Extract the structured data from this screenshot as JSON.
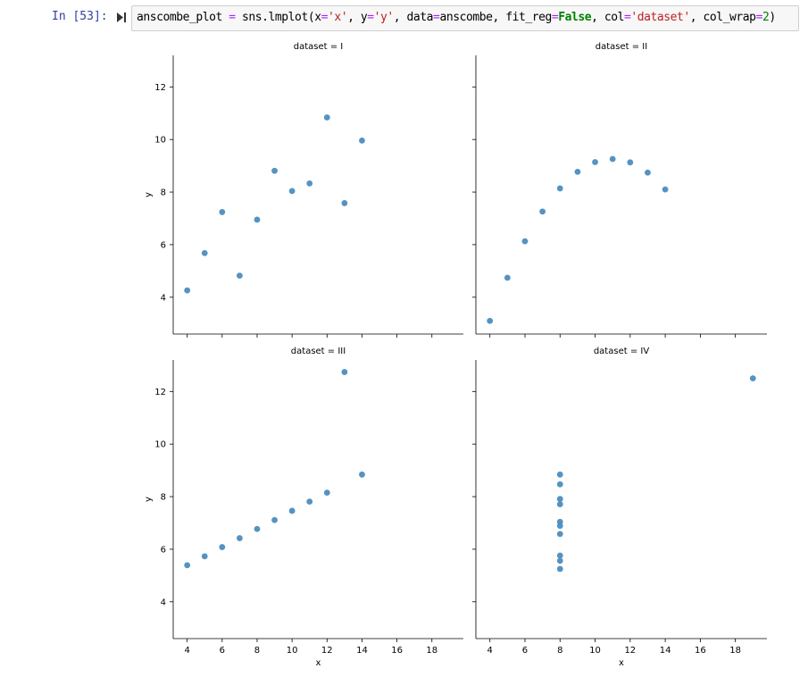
{
  "cell": {
    "prompt": "In [53]:",
    "code_tokens": [
      {
        "t": "anscombe_plot ",
        "c": ""
      },
      {
        "t": "=",
        "c": "op"
      },
      {
        "t": " sns.lmplot(x",
        "c": ""
      },
      {
        "t": "=",
        "c": "op"
      },
      {
        "t": "'x'",
        "c": "str"
      },
      {
        "t": ", y",
        "c": ""
      },
      {
        "t": "=",
        "c": "op"
      },
      {
        "t": "'y'",
        "c": "str"
      },
      {
        "t": ", data",
        "c": ""
      },
      {
        "t": "=",
        "c": "op"
      },
      {
        "t": "anscombe, fit_reg",
        "c": ""
      },
      {
        "t": "=",
        "c": "op"
      },
      {
        "t": "False",
        "c": "kw"
      },
      {
        "t": ", col",
        "c": ""
      },
      {
        "t": "=",
        "c": "op"
      },
      {
        "t": "'dataset'",
        "c": "str"
      },
      {
        "t": ", col_wrap",
        "c": ""
      },
      {
        "t": "=",
        "c": "op"
      },
      {
        "t": "2",
        "c": "num"
      },
      {
        "t": ")",
        "c": ""
      }
    ]
  },
  "chart_data": [
    {
      "type": "scatter",
      "title": "dataset = I",
      "xlabel": "",
      "ylabel": "y",
      "xlim": [
        3.2,
        19.8
      ],
      "ylim": [
        2.6,
        13.2
      ],
      "xticks": [
        4,
        6,
        8,
        10,
        12,
        14,
        16,
        18
      ],
      "yticks": [
        4,
        6,
        8,
        10,
        12
      ],
      "show_xticklabels": false,
      "show_yticklabels": true,
      "color": "#4c8dbe",
      "points": [
        [
          10,
          8.04
        ],
        [
          8,
          6.95
        ],
        [
          13,
          7.58
        ],
        [
          9,
          8.81
        ],
        [
          11,
          8.33
        ],
        [
          14,
          9.96
        ],
        [
          6,
          7.24
        ],
        [
          4,
          4.26
        ],
        [
          12,
          10.84
        ],
        [
          7,
          4.82
        ],
        [
          5,
          5.68
        ]
      ]
    },
    {
      "type": "scatter",
      "title": "dataset = II",
      "xlabel": "",
      "ylabel": "",
      "xlim": [
        3.2,
        19.8
      ],
      "ylim": [
        2.6,
        13.2
      ],
      "xticks": [
        4,
        6,
        8,
        10,
        12,
        14,
        16,
        18
      ],
      "yticks": [
        4,
        6,
        8,
        10,
        12
      ],
      "show_xticklabels": false,
      "show_yticklabels": false,
      "color": "#4c8dbe",
      "points": [
        [
          10,
          9.14
        ],
        [
          8,
          8.14
        ],
        [
          13,
          8.74
        ],
        [
          9,
          8.77
        ],
        [
          11,
          9.26
        ],
        [
          14,
          8.1
        ],
        [
          6,
          6.13
        ],
        [
          4,
          3.1
        ],
        [
          12,
          9.13
        ],
        [
          7,
          7.26
        ],
        [
          5,
          4.74
        ]
      ]
    },
    {
      "type": "scatter",
      "title": "dataset = III",
      "xlabel": "x",
      "ylabel": "y",
      "xlim": [
        3.2,
        19.8
      ],
      "ylim": [
        2.6,
        13.2
      ],
      "xticks": [
        4,
        6,
        8,
        10,
        12,
        14,
        16,
        18
      ],
      "yticks": [
        4,
        6,
        8,
        10,
        12
      ],
      "show_xticklabels": true,
      "show_yticklabels": true,
      "color": "#4c8dbe",
      "points": [
        [
          10,
          7.46
        ],
        [
          8,
          6.77
        ],
        [
          13,
          12.74
        ],
        [
          9,
          7.11
        ],
        [
          11,
          7.81
        ],
        [
          14,
          8.84
        ],
        [
          6,
          6.08
        ],
        [
          4,
          5.39
        ],
        [
          12,
          8.15
        ],
        [
          7,
          6.42
        ],
        [
          5,
          5.73
        ]
      ]
    },
    {
      "type": "scatter",
      "title": "dataset = IV",
      "xlabel": "x",
      "ylabel": "",
      "xlim": [
        3.2,
        19.8
      ],
      "ylim": [
        2.6,
        13.2
      ],
      "xticks": [
        4,
        6,
        8,
        10,
        12,
        14,
        16,
        18
      ],
      "yticks": [
        4,
        6,
        8,
        10,
        12
      ],
      "show_xticklabels": true,
      "show_yticklabels": false,
      "color": "#4c8dbe",
      "points": [
        [
          8,
          6.58
        ],
        [
          8,
          5.76
        ],
        [
          8,
          7.71
        ],
        [
          8,
          8.84
        ],
        [
          8,
          8.47
        ],
        [
          8,
          7.04
        ],
        [
          8,
          5.25
        ],
        [
          19,
          12.5
        ],
        [
          8,
          5.56
        ],
        [
          8,
          7.91
        ],
        [
          8,
          6.89
        ]
      ]
    }
  ]
}
